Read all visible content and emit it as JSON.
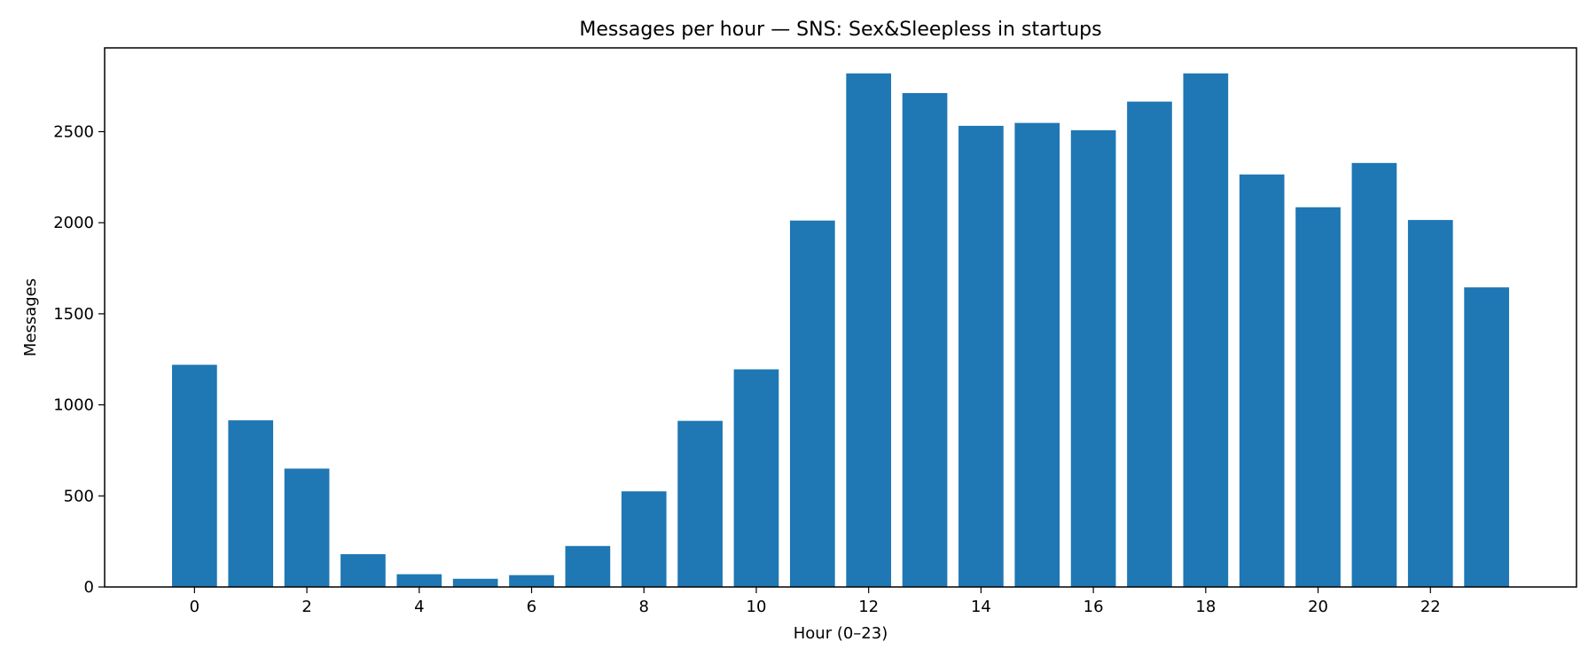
{
  "chart_data": {
    "type": "bar",
    "title": "Messages per hour — SNS: Sex&Sleepless in startups",
    "xlabel": "Hour (0–23)",
    "ylabel": "Messages",
    "categories": [
      0,
      1,
      2,
      3,
      4,
      5,
      6,
      7,
      8,
      9,
      10,
      11,
      12,
      13,
      14,
      15,
      16,
      17,
      18,
      19,
      20,
      21,
      22,
      23
    ],
    "values": [
      1220,
      915,
      650,
      180,
      70,
      45,
      65,
      225,
      525,
      912,
      1195,
      2012,
      2820,
      2712,
      2532,
      2548,
      2508,
      2665,
      2820,
      2265,
      2085,
      2328,
      2015,
      1645
    ],
    "xlim": [
      -1.6,
      24.6
    ],
    "ylim": [
      0,
      2960
    ],
    "xticks": [
      0,
      2,
      4,
      6,
      8,
      10,
      12,
      14,
      16,
      18,
      20,
      22
    ],
    "yticks": [
      0,
      500,
      1000,
      1500,
      2000,
      2500
    ],
    "bar_color": "#1f77b4",
    "grid": false,
    "legend": "none"
  }
}
